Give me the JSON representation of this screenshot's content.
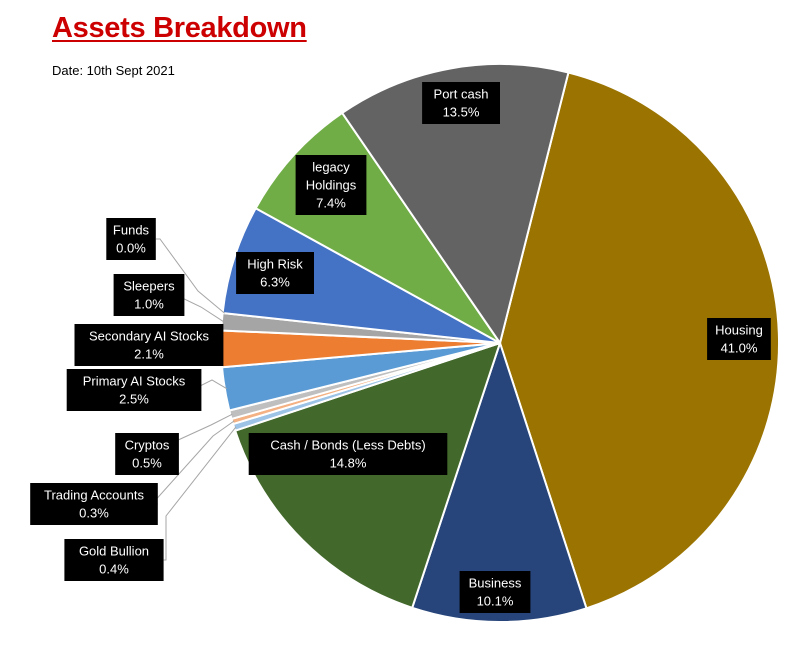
{
  "title": "Assets Breakdown",
  "date": "Date:  10th Sept 2021",
  "chart_data": {
    "type": "pie",
    "title": "Assets Breakdown",
    "subtitle": "Date:  10th Sept 2021",
    "start_angle_deg": 14.2,
    "direction": "clockwise",
    "slices": [
      {
        "label": "Housing",
        "value": 41.0,
        "display": "41.0%",
        "color": "#9a7300"
      },
      {
        "label": "Business",
        "value": 10.1,
        "display": "10.1%",
        "color": "#27457a"
      },
      {
        "label": "Cash / Bonds  (Less Debts)",
        "value": 14.8,
        "display": "14.8%",
        "color": "#43682b"
      },
      {
        "label": "Gold Bullion",
        "value": 0.4,
        "display": "0.4%",
        "color": "#9dc3e6"
      },
      {
        "label": "Trading Accounts",
        "value": 0.3,
        "display": "0.3%",
        "color": "#f4b183"
      },
      {
        "label": "Cryptos",
        "value": 0.5,
        "display": "0.5%",
        "color": "#bfbfbf"
      },
      {
        "label": "Primary AI Stocks",
        "value": 2.5,
        "display": "2.5%",
        "color": "#5b9bd5"
      },
      {
        "label": "Secondary AI Stocks",
        "value": 2.1,
        "display": "2.1%",
        "color": "#ed7d31"
      },
      {
        "label": "Sleepers",
        "value": 1.0,
        "display": "1.0%",
        "color": "#a5a5a5"
      },
      {
        "label": "Funds",
        "value": 0.0,
        "display": "0.0%",
        "color": "#ffc000"
      },
      {
        "label": "High Risk",
        "value": 6.3,
        "display": "6.3%",
        "color": "#4472c4"
      },
      {
        "label": "legacy Holdings",
        "value": 7.4,
        "display": "7.4%",
        "color": "#70ad47"
      },
      {
        "label": "Port cash",
        "value": 13.5,
        "display": "13.5%",
        "color": "#636363"
      }
    ],
    "legend": "none",
    "data_labels": "category name and percentage"
  }
}
